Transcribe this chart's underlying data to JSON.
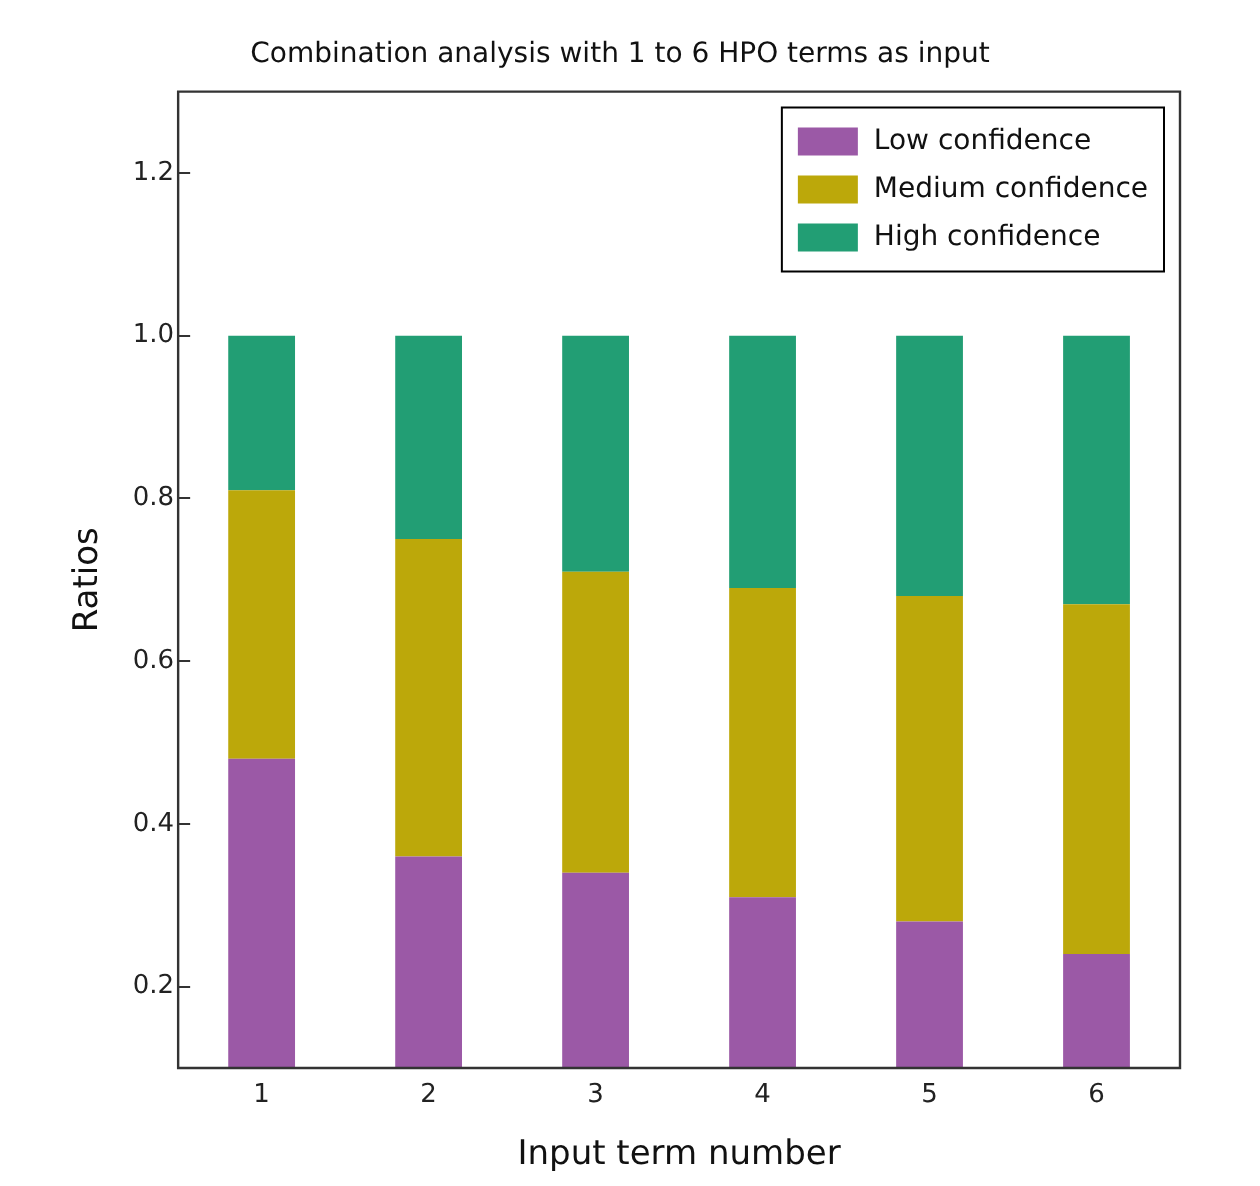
{
  "chart_data": {
    "type": "bar",
    "stacked": true,
    "title": "Combination analysis with 1 to 6 HPO terms as input",
    "xlabel": "Input term number",
    "ylabel": "Ratios",
    "categories": [
      "1",
      "2",
      "3",
      "4",
      "5",
      "6"
    ],
    "series": [
      {
        "name": "Low confidence",
        "color": "#9b59a6",
        "values": [
          0.48,
          0.36,
          0.34,
          0.31,
          0.28,
          0.24
        ]
      },
      {
        "name": "Medium confidence",
        "color": "#bca80a",
        "values": [
          0.33,
          0.39,
          0.37,
          0.38,
          0.4,
          0.43
        ]
      },
      {
        "name": "High confidence",
        "color": "#229e74",
        "values": [
          0.19,
          0.25,
          0.29,
          0.31,
          0.32,
          0.33
        ]
      }
    ],
    "ylim": [
      0.1,
      1.3
    ],
    "yticks": [
      0.2,
      0.4,
      0.6,
      0.8,
      {
        "value": 1,
        "label": "1.0"
      },
      1.2
    ],
    "grid": false,
    "legend": "top right"
  }
}
